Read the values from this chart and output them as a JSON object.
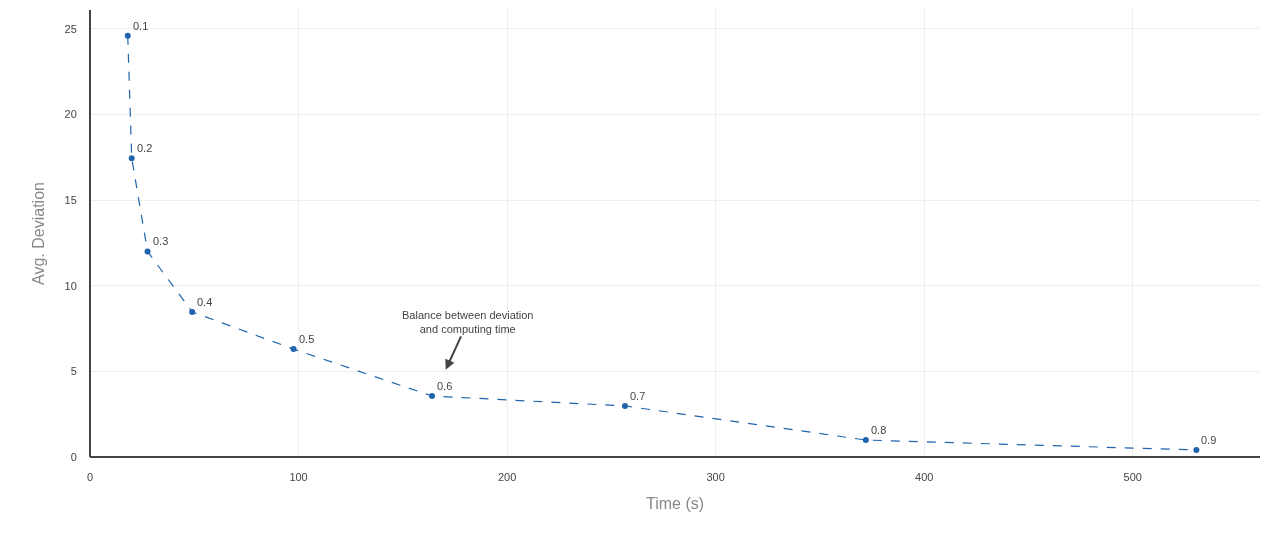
{
  "chart_data": {
    "type": "line",
    "xlabel": "Time (s)",
    "ylabel": "Avg. Deviation",
    "x": [
      18.1,
      20,
      27.6,
      49,
      97.6,
      164,
      256.5,
      372,
      530.5
    ],
    "series": [
      {
        "color": "#1f64ad",
        "values": [
          24.6,
          17.45,
          12.0,
          8.47,
          6.3,
          3.56,
          2.98,
          0.99,
          0.41
        ]
      }
    ],
    "xlim": [
      0,
      561
    ],
    "xticks": [
      0,
      100,
      200,
      300,
      400,
      500
    ],
    "ylim": [
      0,
      26.1
    ],
    "yticks": [
      0,
      5,
      10,
      15,
      20,
      25
    ],
    "grid": true,
    "legend": false,
    "marker": "circle",
    "line_style": "dashed",
    "annotations": [
      {
        "text": "0.1",
        "x": 18.1,
        "y": 24.6
      },
      {
        "text": "0.2",
        "x": 20,
        "y": 17.45
      },
      {
        "text": "0.3",
        "x": 27.6,
        "y": 12.0
      },
      {
        "text": "0.4",
        "x": 49,
        "y": 8.47
      },
      {
        "text": "0.5",
        "x": 97.6,
        "y": 6.3
      },
      {
        "text": "0.6",
        "x": 164,
        "y": 3.56
      },
      {
        "text": "0.7",
        "x": 256.5,
        "y": 2.98
      },
      {
        "text": "0.8",
        "x": 372,
        "y": 0.99
      },
      {
        "text": "0.9",
        "x": 530.5,
        "y": 0.41
      },
      "Balance between deviation\nand computing time"
    ]
  }
}
